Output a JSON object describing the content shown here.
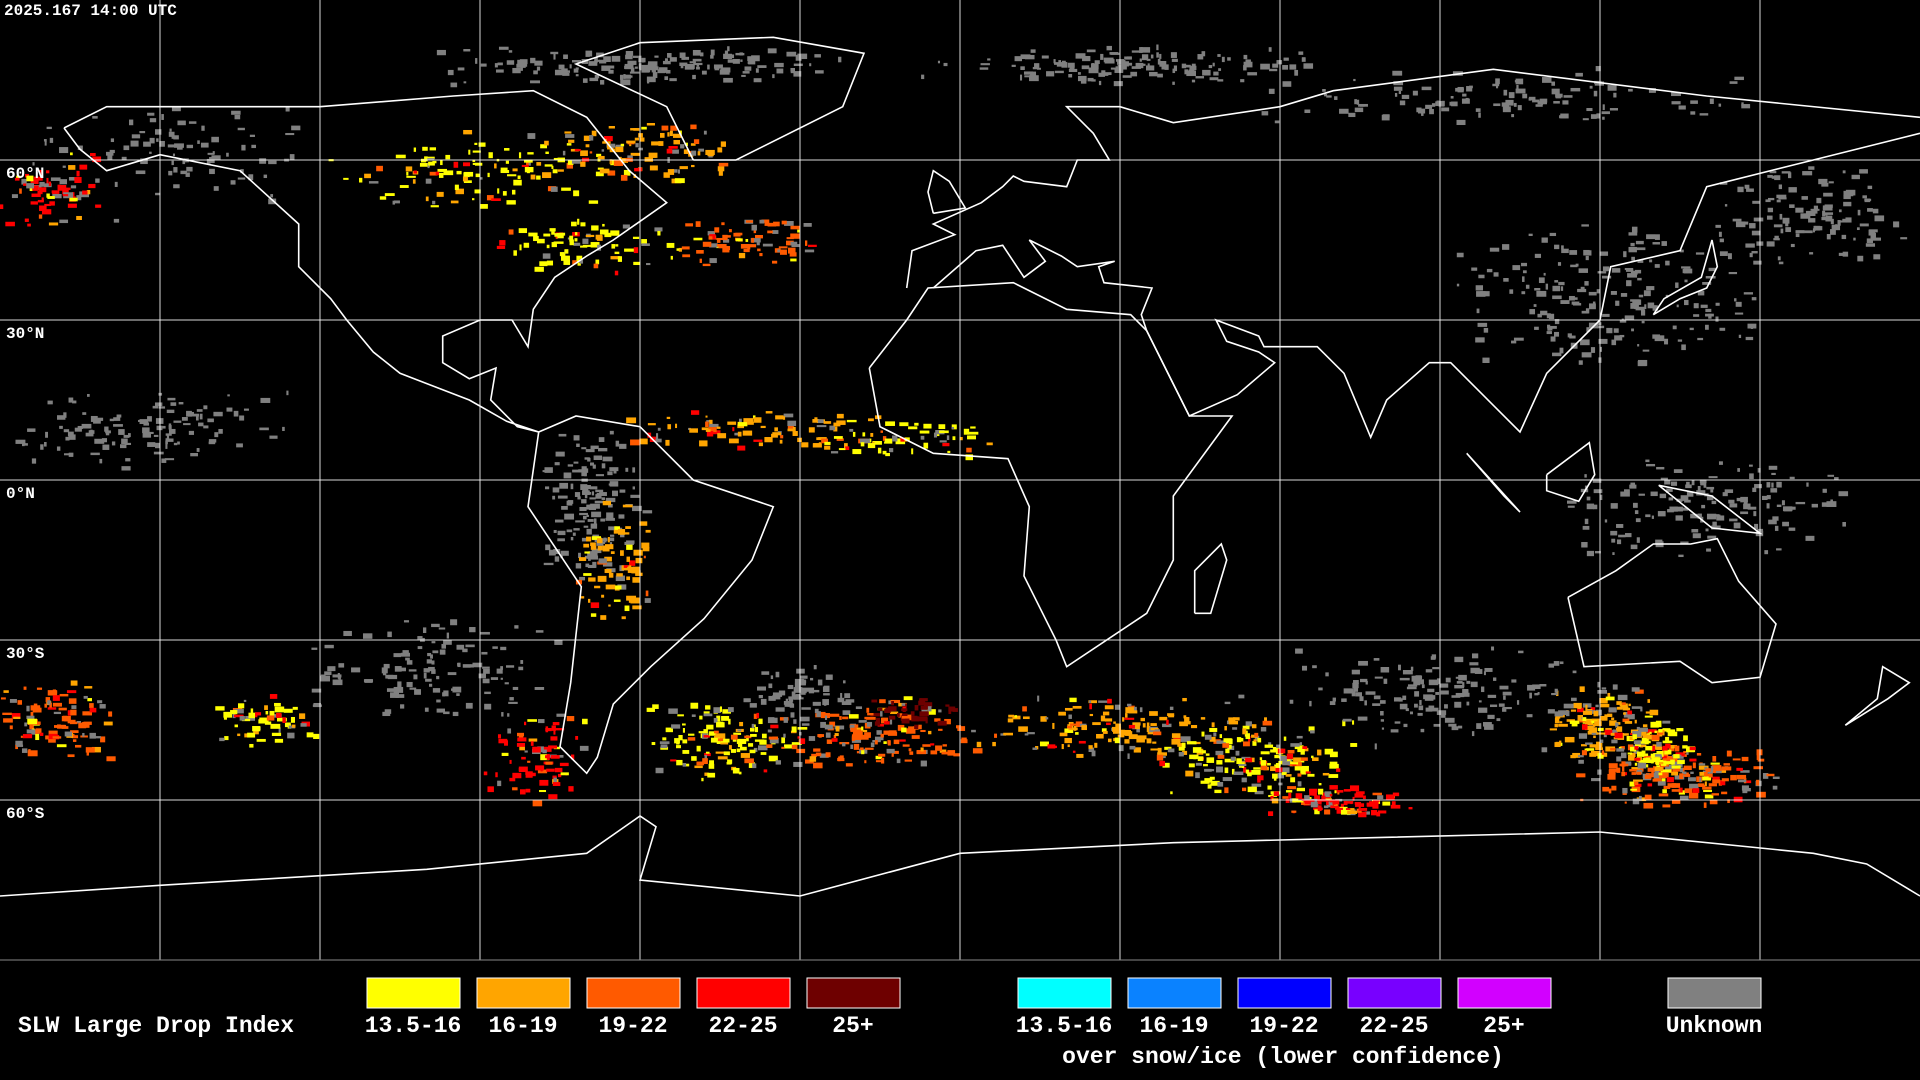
{
  "timestamp": "2025.167 14:00 UTC",
  "map": {
    "latitude_labels": [
      "60°N",
      "30°N",
      "0°N",
      "30°S",
      "60°S"
    ]
  },
  "legend": {
    "title": "SLW Large Drop Index",
    "groups": [
      {
        "items": [
          {
            "label": "13.5-16",
            "color": "#ffff00"
          },
          {
            "label": "16-19",
            "color": "#ffa500"
          },
          {
            "label": "19-22",
            "color": "#ff5a00"
          },
          {
            "label": "22-25",
            "color": "#ff0000"
          },
          {
            "label": "25+",
            "color": "#6e0000"
          }
        ]
      },
      {
        "items": [
          {
            "label": "13.5-16",
            "color": "#00ffff"
          },
          {
            "label": "16-19",
            "color": "#0a82ff"
          },
          {
            "label": "19-22",
            "color": "#0000ff"
          },
          {
            "label": "22-25",
            "color": "#7800ff"
          },
          {
            "label": "25+",
            "color": "#d200ff"
          }
        ]
      }
    ],
    "unknown": {
      "label": "Unknown",
      "color": "#808080"
    },
    "note": "over snow/ice (lower confidence)"
  }
}
